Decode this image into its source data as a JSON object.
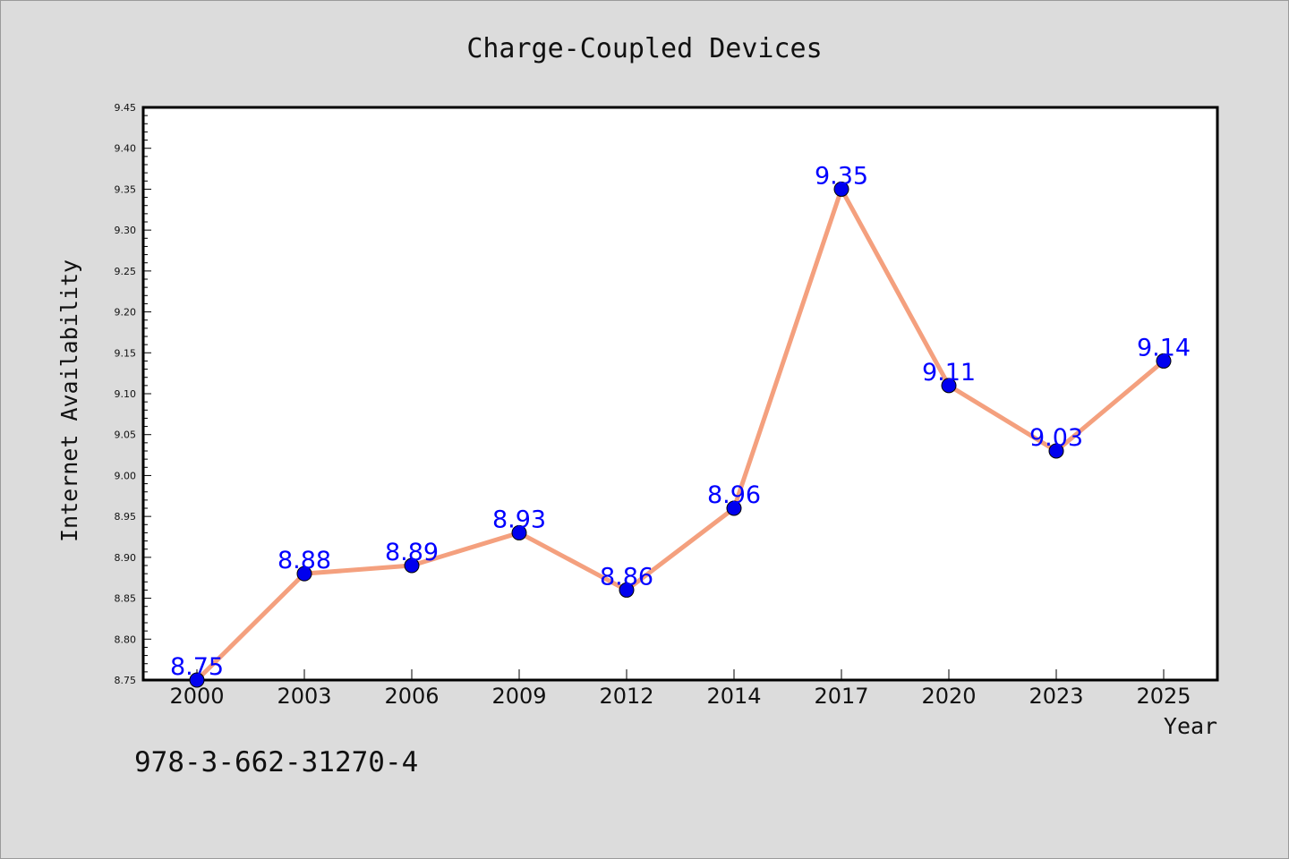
{
  "chart_data": {
    "type": "line",
    "title": "Charge-Coupled Devices",
    "xlabel": "Year",
    "ylabel": "Internet Availability",
    "categories": [
      "2000",
      "2003",
      "2006",
      "2009",
      "2012",
      "2014",
      "2017",
      "2020",
      "2023",
      "2025"
    ],
    "series": [
      {
        "values": [
          8.75,
          8.88,
          8.89,
          8.93,
          8.86,
          8.96,
          9.35,
          9.11,
          9.03,
          9.14
        ],
        "data_labels": [
          "8.75",
          "8.88",
          "8.89",
          "8.93",
          "8.86",
          "8.96",
          "9.35",
          "9.11",
          "9.03",
          "9.14"
        ],
        "line_color": "#f4a07e",
        "marker_color": "#0000ee",
        "label_color": "#0000ff"
      }
    ],
    "ylim": [
      8.75,
      9.45
    ],
    "yticks": [
      "8.75",
      "8.80",
      "8.85",
      "8.90",
      "8.95",
      "9.00",
      "9.05",
      "9.10",
      "9.15",
      "9.20",
      "9.25",
      "9.30",
      "9.35",
      "9.40",
      "9.45"
    ],
    "grid": false,
    "legend": "none"
  },
  "annotation": "978-3-662-31270-4"
}
